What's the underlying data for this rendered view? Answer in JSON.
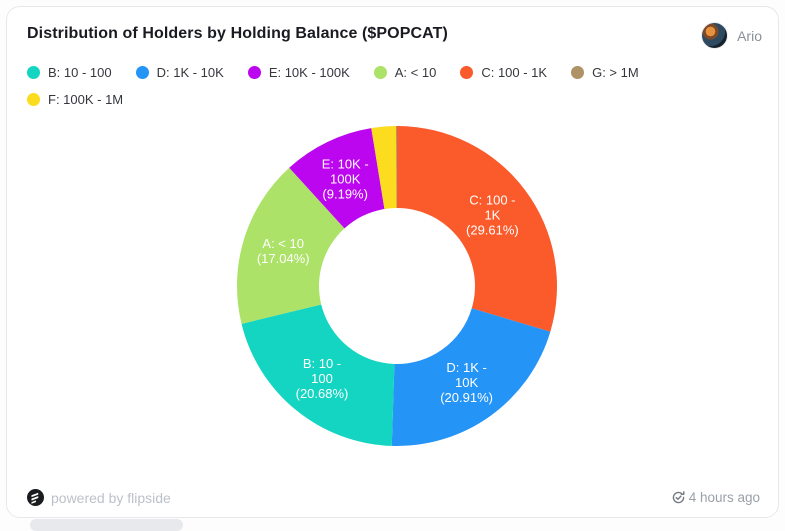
{
  "header": {
    "title": "Distribution of Holders by Holding Balance ($POPCAT)",
    "user_name": "Ario"
  },
  "legend": {
    "items": [
      {
        "label": "B: 10 - 100",
        "color": "#13D5C2"
      },
      {
        "label": "D: 1K - 10K",
        "color": "#2494F6"
      },
      {
        "label": "E: 10K - 100K",
        "color": "#BB06EF"
      },
      {
        "label": "A: < 10",
        "color": "#ACE268"
      },
      {
        "label": "C: 100 - 1K",
        "color": "#FB5A2B"
      },
      {
        "label": "G: > 1M",
        "color": "#AF9265"
      },
      {
        "label": "F: 100K - 1M",
        "color": "#FBDC1E"
      }
    ]
  },
  "chart_data": {
    "type": "pie",
    "subtype": "donut",
    "title": "Distribution of Holders by Holding Balance ($POPCAT)",
    "unit": "percent",
    "start_angle_deg": 0,
    "direction": "clockwise",
    "inner_radius_ratio": 0.49,
    "legend_position": "top",
    "slices": [
      {
        "name": "C: 100 - 1K",
        "value": 29.61,
        "color": "#FB5A2B",
        "label_lines": [
          "C: 100 -",
          "1K",
          "(29.61%)"
        ]
      },
      {
        "name": "D: 1K - 10K",
        "value": 20.91,
        "color": "#2494F6",
        "label_lines": [
          "D: 1K -",
          "10K",
          "(20.91%)"
        ]
      },
      {
        "name": "B: 10 - 100",
        "value": 20.68,
        "color": "#13D5C2",
        "label_lines": [
          "B: 10 -",
          "100",
          "(20.68%)"
        ]
      },
      {
        "name": "A: < 10",
        "value": 17.04,
        "color": "#ACE268",
        "label_lines": [
          "A: < 10",
          "(17.04%)"
        ]
      },
      {
        "name": "E: 10K - 100K",
        "value": 9.19,
        "color": "#BB06EF",
        "label_lines": [
          "E: 10K -",
          "100K",
          "(9.19%)"
        ]
      },
      {
        "name": "F: 100K - 1M",
        "value": 2.47,
        "color": "#FBDC1E",
        "label_lines": []
      },
      {
        "name": "G: > 1M",
        "value": 0.1,
        "color": "#AF9265",
        "label_lines": []
      }
    ]
  },
  "footer": {
    "powered_by": "powered by flipside",
    "updated": "4 hours ago"
  }
}
